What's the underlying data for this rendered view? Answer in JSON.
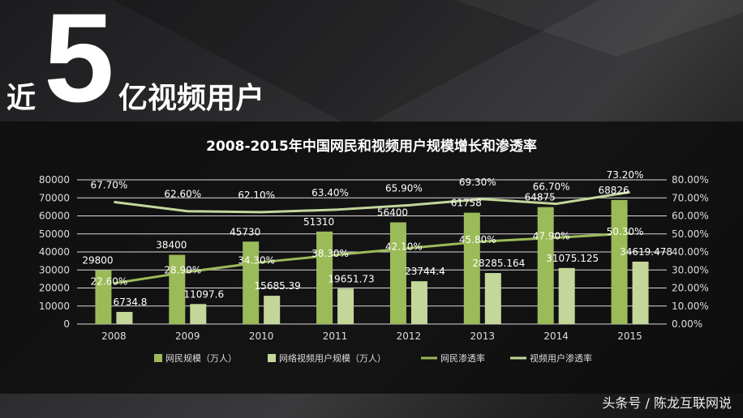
{
  "headline": {
    "prefix": "近",
    "number": "5",
    "suffix": "亿视频用户"
  },
  "watermark": "头条号 / 陈龙互联网说",
  "chart_data": {
    "type": "bar+line",
    "title": "2008-2015年中国网民和视频用户规模增长和渗透率",
    "categories": [
      "2008",
      "2009",
      "2010",
      "2011",
      "2012",
      "2013",
      "2014",
      "2015"
    ],
    "y_left": {
      "range": [
        0,
        80000
      ],
      "ticks": [
        "0",
        "10000",
        "20000",
        "30000",
        "40000",
        "50000",
        "60000",
        "70000",
        "80000"
      ]
    },
    "y_right": {
      "range": [
        0,
        80
      ],
      "ticks": [
        "0.00%",
        "10.00%",
        "20.00%",
        "30.00%",
        "40.00%",
        "50.00%",
        "60.00%",
        "70.00%",
        "80.00%"
      ]
    },
    "grid": true,
    "legend_position": "bottom",
    "series": [
      {
        "name": "网民规模（万人）",
        "type": "bar",
        "axis": "left",
        "color": "#9bbb59",
        "values": [
          29800,
          38400,
          45730,
          51310,
          56400,
          61758,
          64875,
          68826
        ],
        "labels": [
          "29800",
          "38400",
          "45730",
          "51310",
          "56400",
          "61758",
          "64875",
          "68826"
        ]
      },
      {
        "name": "网络视频用户规模（万人）",
        "type": "bar",
        "axis": "left",
        "color": "#c4d79b",
        "values": [
          6734.8,
          11097.6,
          15685.39,
          19651.73,
          23744.4,
          28285.164,
          31075.125,
          34619.478
        ],
        "labels": [
          "6734.8",
          "11097.6",
          "15685.39",
          "19651.73",
          "23744.4",
          "28285.164",
          "31075.125",
          "34619.478"
        ]
      },
      {
        "name": "网民渗透率",
        "type": "line",
        "axis": "right",
        "color": "#9bbb59",
        "values": [
          22.6,
          28.9,
          34.3,
          38.3,
          42.1,
          45.8,
          47.9,
          50.3
        ],
        "labels": [
          "22.60%",
          "28.90%",
          "34.30%",
          "38.30%",
          "42.10%",
          "45.80%",
          "47.90%",
          "50.30%"
        ]
      },
      {
        "name": "视频用户渗透率",
        "type": "line",
        "axis": "right",
        "color": "#c4d79b",
        "values": [
          67.7,
          62.6,
          62.1,
          63.4,
          65.9,
          69.3,
          66.7,
          73.2
        ],
        "labels": [
          "67.70%",
          "62.60%",
          "62.10%",
          "63.40%",
          "65.90%",
          "69.30%",
          "66.70%",
          "73.20%"
        ]
      }
    ]
  }
}
